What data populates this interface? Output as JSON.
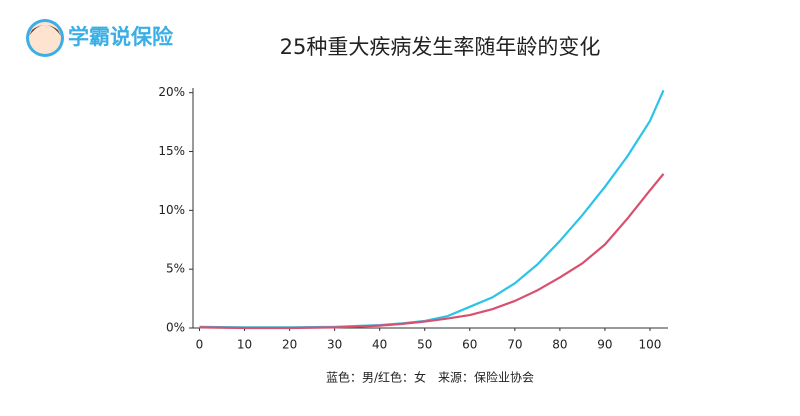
{
  "brand": "学霸说保险",
  "chart_data": {
    "type": "line",
    "title": "25种重大疾病发生率随年龄的变化",
    "caption": "蓝色：男/红色：女　来源：保险业协会",
    "x": [
      0,
      10,
      20,
      30,
      40,
      45,
      50,
      55,
      60,
      65,
      70,
      75,
      80,
      85,
      90,
      95,
      100,
      103
    ],
    "series": [
      {
        "color": "#2bc3e8",
        "values": [
          0.1,
          0.05,
          0.05,
          0.1,
          0.25,
          0.4,
          0.6,
          1.0,
          1.8,
          2.6,
          3.8,
          5.4,
          7.4,
          9.6,
          12.0,
          14.6,
          17.6,
          20.2
        ]
      },
      {
        "color": "#d9506e",
        "values": [
          0.05,
          0,
          0,
          0.05,
          0.2,
          0.35,
          0.55,
          0.8,
          1.1,
          1.6,
          2.3,
          3.2,
          4.3,
          5.5,
          7.1,
          9.3,
          11.7,
          13.1
        ]
      }
    ],
    "xlim": [
      -1,
      104
    ],
    "xticks": [
      0,
      10,
      20,
      30,
      40,
      50,
      60,
      70,
      80,
      90,
      100
    ],
    "ylim": [
      0,
      20.4
    ],
    "yticks": [
      {
        "value": 0,
        "label": "0%"
      },
      {
        "value": 5,
        "label": "5%"
      },
      {
        "value": 10,
        "label": "10%"
      },
      {
        "value": 15,
        "label": "15%"
      },
      {
        "value": 20,
        "label": "20%"
      }
    ]
  }
}
